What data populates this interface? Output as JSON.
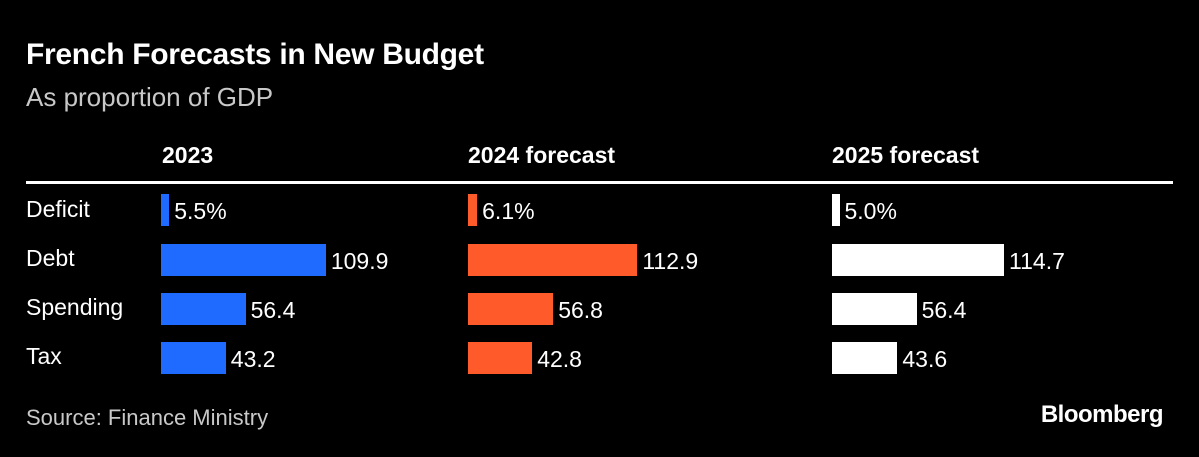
{
  "header": {
    "title": "French Forecasts in New Budget",
    "subtitle": "As proportion of GDP"
  },
  "chart_data": {
    "type": "bar",
    "title": "French Forecasts in New Budget",
    "subtitle": "As proportion of GDP",
    "categories": [
      "Deficit",
      "Debt",
      "Spending",
      "Tax"
    ],
    "series": [
      {
        "name": "2023",
        "color": "#1F6BFF",
        "values": [
          5.5,
          109.9,
          56.4,
          43.2
        ],
        "labels": [
          "5.5%",
          "109.9",
          "56.4",
          "43.2"
        ]
      },
      {
        "name": "2024 forecast",
        "color": "#FF5A2A",
        "values": [
          6.1,
          112.9,
          56.8,
          42.8
        ],
        "labels": [
          "6.1%",
          "112.9",
          "56.8",
          "42.8"
        ]
      },
      {
        "name": "2025 forecast",
        "color": "#FFFFFF",
        "values": [
          5.0,
          114.7,
          56.4,
          43.6
        ],
        "labels": [
          "5.0%",
          "114.7",
          "56.4",
          "43.6"
        ]
      }
    ],
    "orientation": "horizontal",
    "layout": "small-multiples",
    "grid": false,
    "legend": "none"
  },
  "footer": {
    "source": "Source: Finance Ministry",
    "brand": "Bloomberg"
  }
}
